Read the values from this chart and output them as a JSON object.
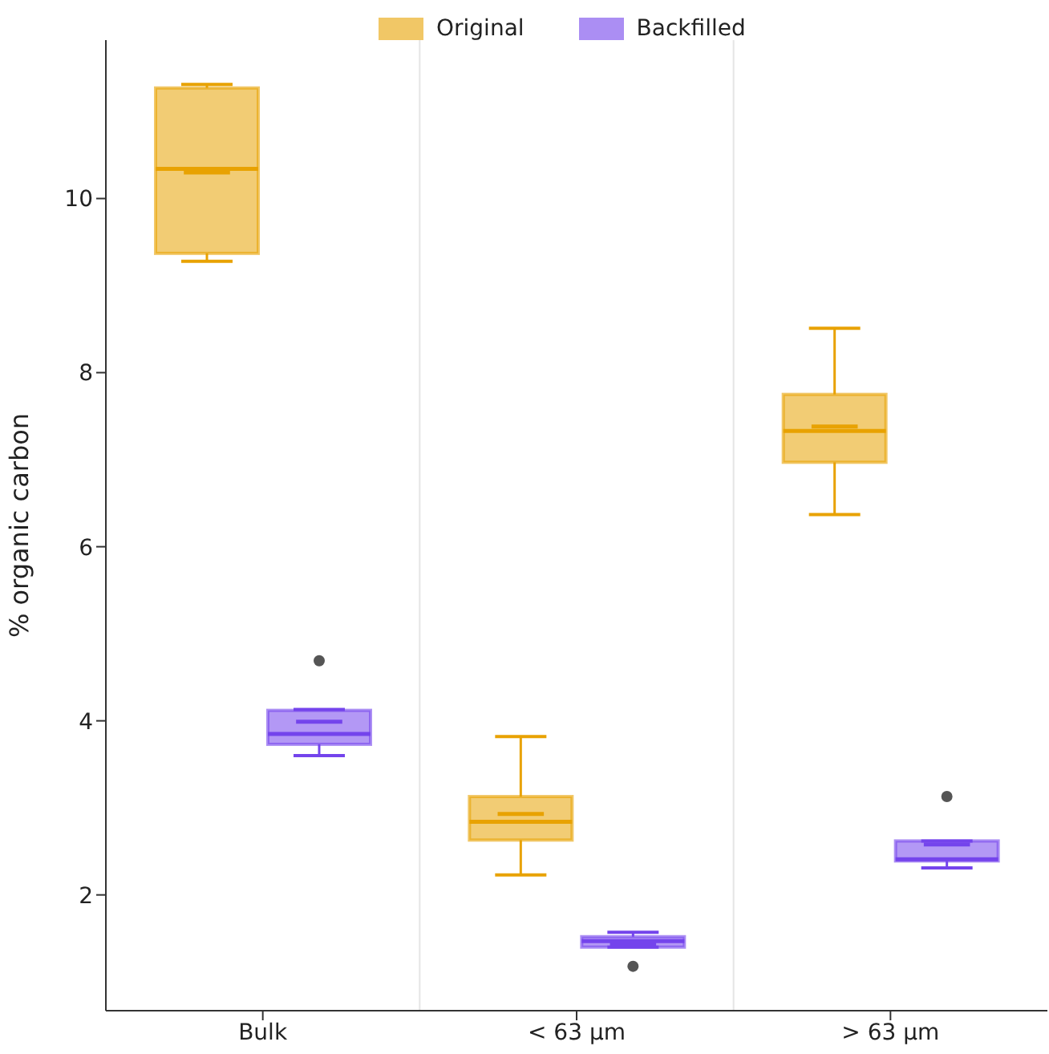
{
  "chart_data": {
    "type": "box",
    "ylabel": "% organic carbon",
    "categories": [
      "Bulk",
      "< 63 µm",
      "> 63 µm"
    ],
    "series": [
      {
        "name": "Original",
        "color": "#e8a202",
        "boxes": [
          {
            "low": 9.28,
            "q1": 9.37,
            "median": 10.34,
            "q3": 11.27,
            "high": 11.31,
            "mean": 10.3
          },
          {
            "low": 2.23,
            "q1": 2.63,
            "median": 2.84,
            "q3": 3.13,
            "high": 3.82,
            "mean": 2.93
          },
          {
            "low": 6.37,
            "q1": 6.97,
            "median": 7.33,
            "q3": 7.75,
            "high": 8.51,
            "mean": 7.38
          }
        ]
      },
      {
        "name": "Backfilled",
        "color": "#7444ec",
        "boxes": [
          {
            "low": 3.6,
            "q1": 3.73,
            "median": 3.85,
            "q3": 4.12,
            "high": 4.13,
            "mean": 3.99,
            "outliers": [
              4.69
            ]
          },
          {
            "low": 1.4,
            "q1": 1.4,
            "median": 1.47,
            "q3": 1.52,
            "high": 1.57,
            "mean": 1.44,
            "outliers": [
              1.18
            ]
          },
          {
            "low": 2.31,
            "q1": 2.39,
            "median": 2.41,
            "q3": 2.62,
            "high": 2.62,
            "mean": 2.58,
            "outliers": [
              3.13
            ]
          }
        ]
      }
    ],
    "ylim": [
      0.67,
      11.82
    ],
    "yticks": [
      2,
      4,
      6,
      8,
      10
    ],
    "grid": "x",
    "legend": "top"
  }
}
